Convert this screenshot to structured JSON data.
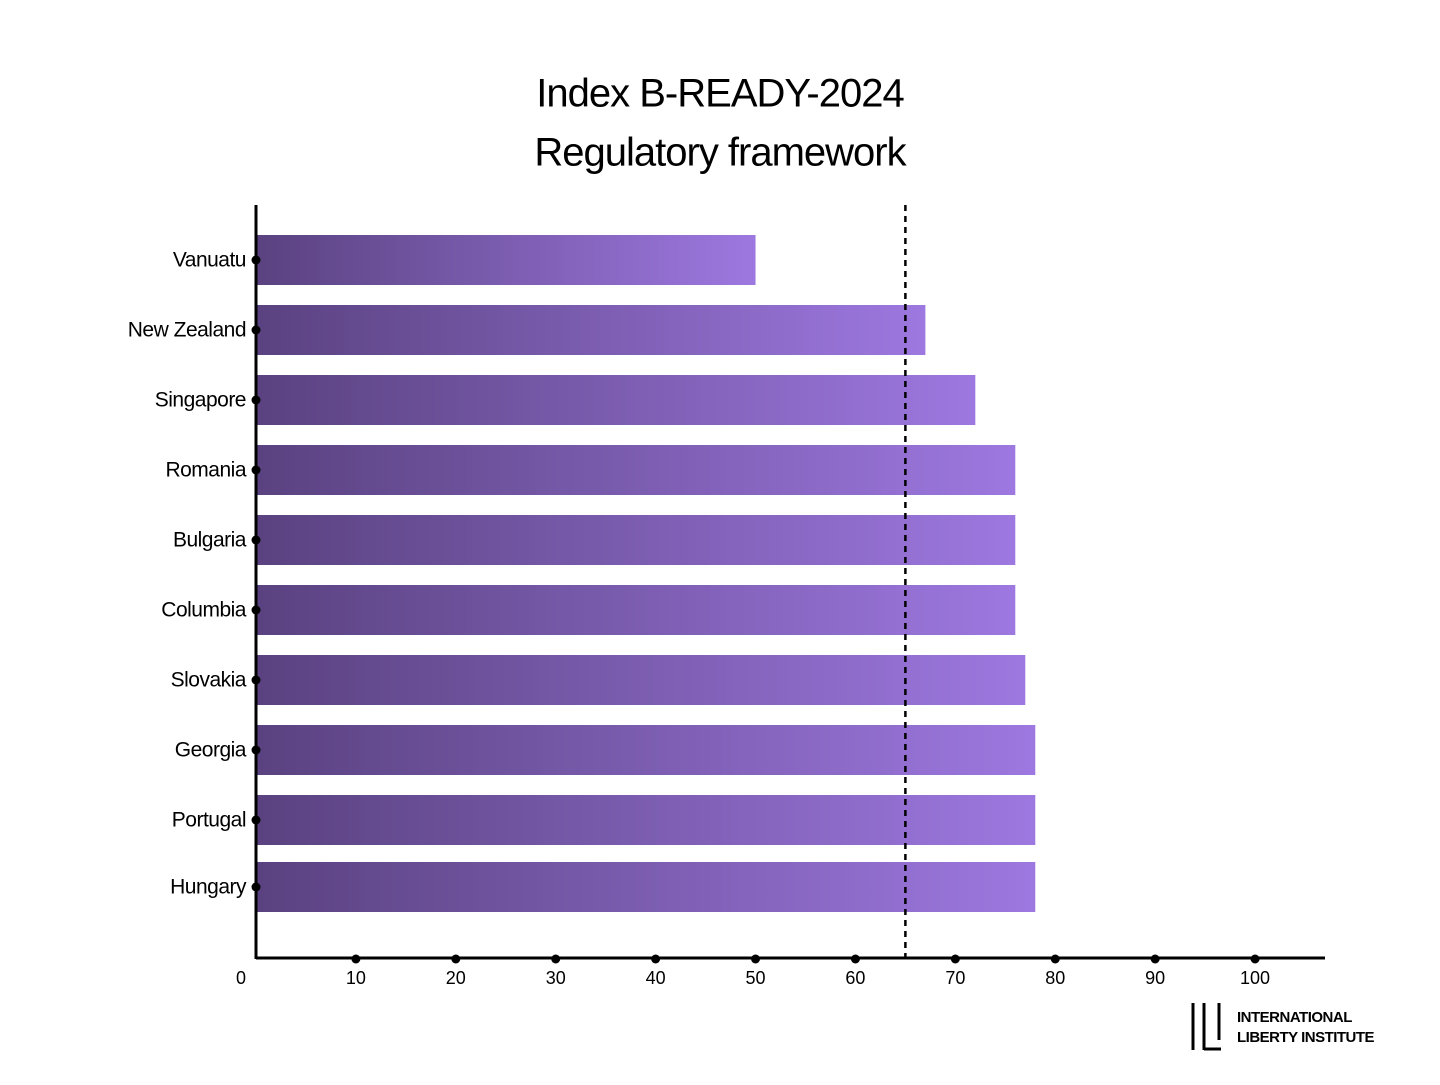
{
  "chart_data": {
    "type": "hbar",
    "title": "Index B-READY-2024",
    "subtitle": "Regulatory framework",
    "categories": [
      "Vanuatu",
      "New Zealand",
      "Singapore",
      "Romania",
      "Bulgaria",
      "Columbia",
      "Slovakia",
      "Georgia",
      "Portugal",
      "Hungary"
    ],
    "values": [
      50,
      67,
      72,
      76,
      76,
      76,
      77,
      78,
      78,
      78
    ],
    "color_start": "#5a4280",
    "color_end": "#9d78e0",
    "xlim": [
      0,
      107
    ],
    "xticks": [
      0,
      10,
      20,
      30,
      40,
      50,
      60,
      70,
      80,
      90,
      100
    ],
    "reference_line": 65,
    "logo": {
      "line1": "INTERNATIONAL",
      "line2": "LIBERTY INSTITUTE"
    }
  }
}
